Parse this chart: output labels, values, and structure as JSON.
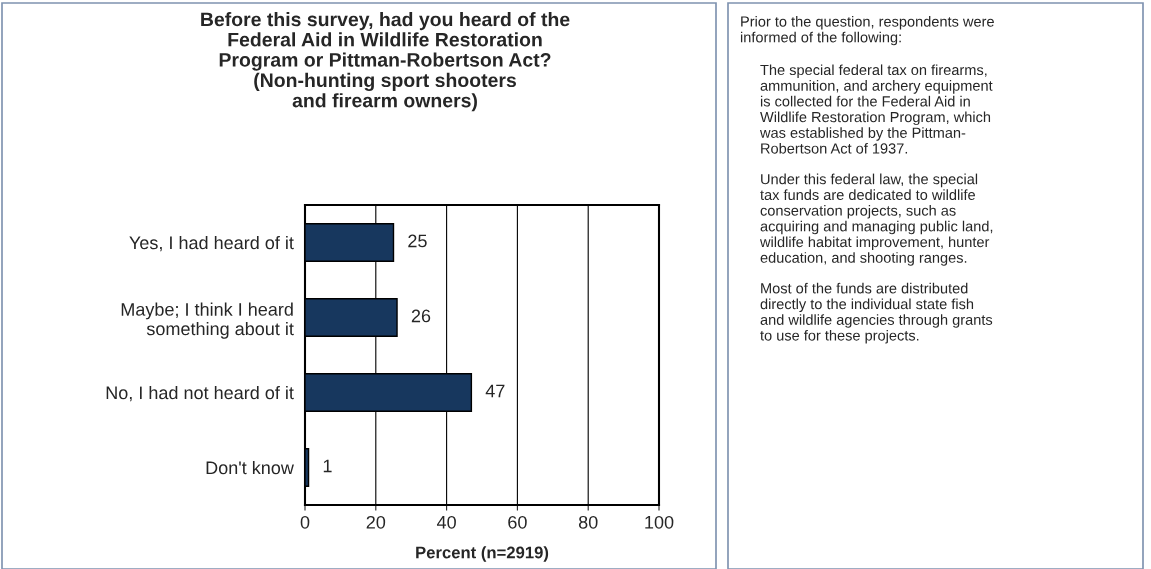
{
  "chart_data": [
    {
      "type": "bar",
      "orientation": "horizontal",
      "title": "Before this survey, had you heard of the\nFederal Aid in Wildlife Restoration\nProgram or Pittman-Robertson Act?\n(Non-hunting sport shooters\nand firearm owners)",
      "categories": [
        "Yes, I had heard of it",
        "Maybe; I think I heard\nsomething about it",
        "No, I had not heard of it",
        "Don't know"
      ],
      "values": [
        25,
        26,
        47,
        1
      ],
      "color": "#17375e",
      "data_labels": true,
      "xlim": [
        0,
        100
      ],
      "xticks": [
        0,
        20,
        40,
        60,
        80,
        100
      ],
      "grid": "x",
      "xlabel": "Percent (n=2919)"
    },
    {
      "type": "other",
      "annotations": [
        "Prior to the question, respondents were\ninformed of the following:",
        "The special federal tax on firearms,\nammunition, and archery equipment\nis collected for the Federal Aid in\nWildlife Restoration Program, which\nwas established by the Pittman-\nRobertson Act of 1937.",
        "Under this federal law, the special\ntax funds are dedicated to wildlife\nconservation projects, such as\nacquiring and managing public land,\nwildlife habitat improvement, hunter\neducation, and shooting ranges.",
        "Most of the funds are distributed\ndirectly to the individual state fish\nand wildlife agencies through grants\nto use for these projects."
      ]
    }
  ]
}
